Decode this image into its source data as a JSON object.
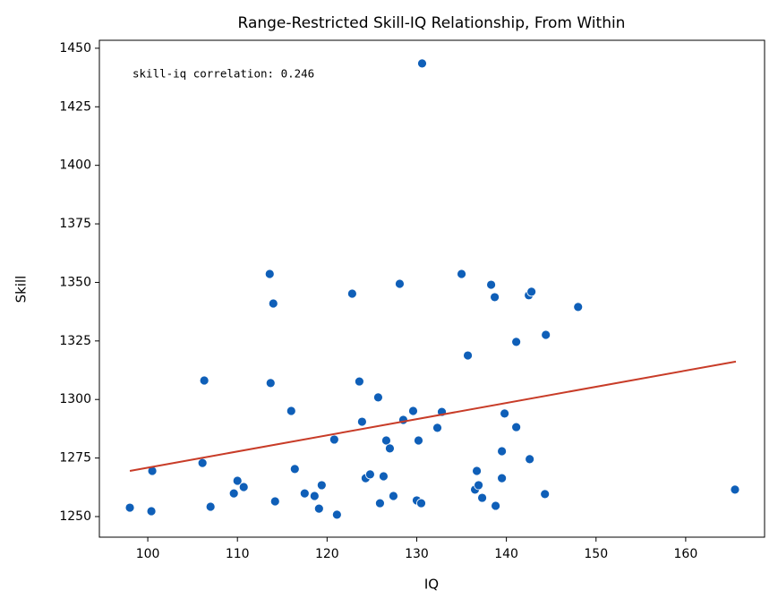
{
  "chart_data": {
    "type": "scatter",
    "title": "Range-Restricted Skill-IQ Relationship, From Within",
    "xlabel": "IQ",
    "ylabel": "Skill",
    "annotation": "skill-iq correlation: 0.246",
    "color": "#0f5fb8",
    "x": [
      98.0,
      100.5,
      100.4,
      106.1,
      106.3,
      107.0,
      109.6,
      110.0,
      110.7,
      113.6,
      113.7,
      114.0,
      114.2,
      116.0,
      116.4,
      117.5,
      118.6,
      119.1,
      119.4,
      120.8,
      121.1,
      122.8,
      123.6,
      123.9,
      124.3,
      124.8,
      125.7,
      125.9,
      126.3,
      126.6,
      127.0,
      127.4,
      128.1,
      128.5,
      129.6,
      130.0,
      130.2,
      130.5,
      130.6,
      132.3,
      132.8,
      135.0,
      135.7,
      136.5,
      136.7,
      136.9,
      137.3,
      138.3,
      138.7,
      138.8,
      139.5,
      139.5,
      139.8,
      141.1,
      141.1,
      142.5,
      142.8,
      142.6,
      144.3,
      144.4,
      148.0,
      165.5
    ],
    "y": [
      1253.8,
      1269.5,
      1252.3,
      1272.9,
      1308.1,
      1254.2,
      1259.9,
      1265.3,
      1262.6,
      1353.6,
      1307.0,
      1341.0,
      1256.5,
      1295.1,
      1270.3,
      1259.9,
      1258.8,
      1253.4,
      1263.4,
      1282.9,
      1250.8,
      1345.2,
      1307.7,
      1290.5,
      1266.4,
      1268.0,
      1300.9,
      1255.7,
      1267.2,
      1282.5,
      1279.1,
      1258.8,
      1349.4,
      1291.3,
      1295.1,
      1256.9,
      1282.5,
      1255.7,
      1443.5,
      1287.9,
      1294.7,
      1353.6,
      1318.8,
      1261.5,
      1269.5,
      1263.4,
      1258.0,
      1349.0,
      1343.7,
      1254.6,
      1277.9,
      1266.4,
      1294.0,
      1288.2,
      1324.6,
      1344.5,
      1346.0,
      1274.5,
      1259.6,
      1327.6,
      1339.5,
      1261.5
    ],
    "regression_line": {
      "x": [
        98.0,
        165.6
      ],
      "y": [
        1269.5,
        1316.2
      ],
      "color": "#c83c28"
    },
    "xlim": [
      94.6,
      168.8
    ],
    "ylim": [
      1241.2,
      1453.4
    ],
    "xticks": [
      100,
      110,
      120,
      130,
      140,
      150,
      160
    ],
    "yticks": [
      1250,
      1275,
      1300,
      1325,
      1350,
      1375,
      1400,
      1425,
      1450
    ]
  }
}
